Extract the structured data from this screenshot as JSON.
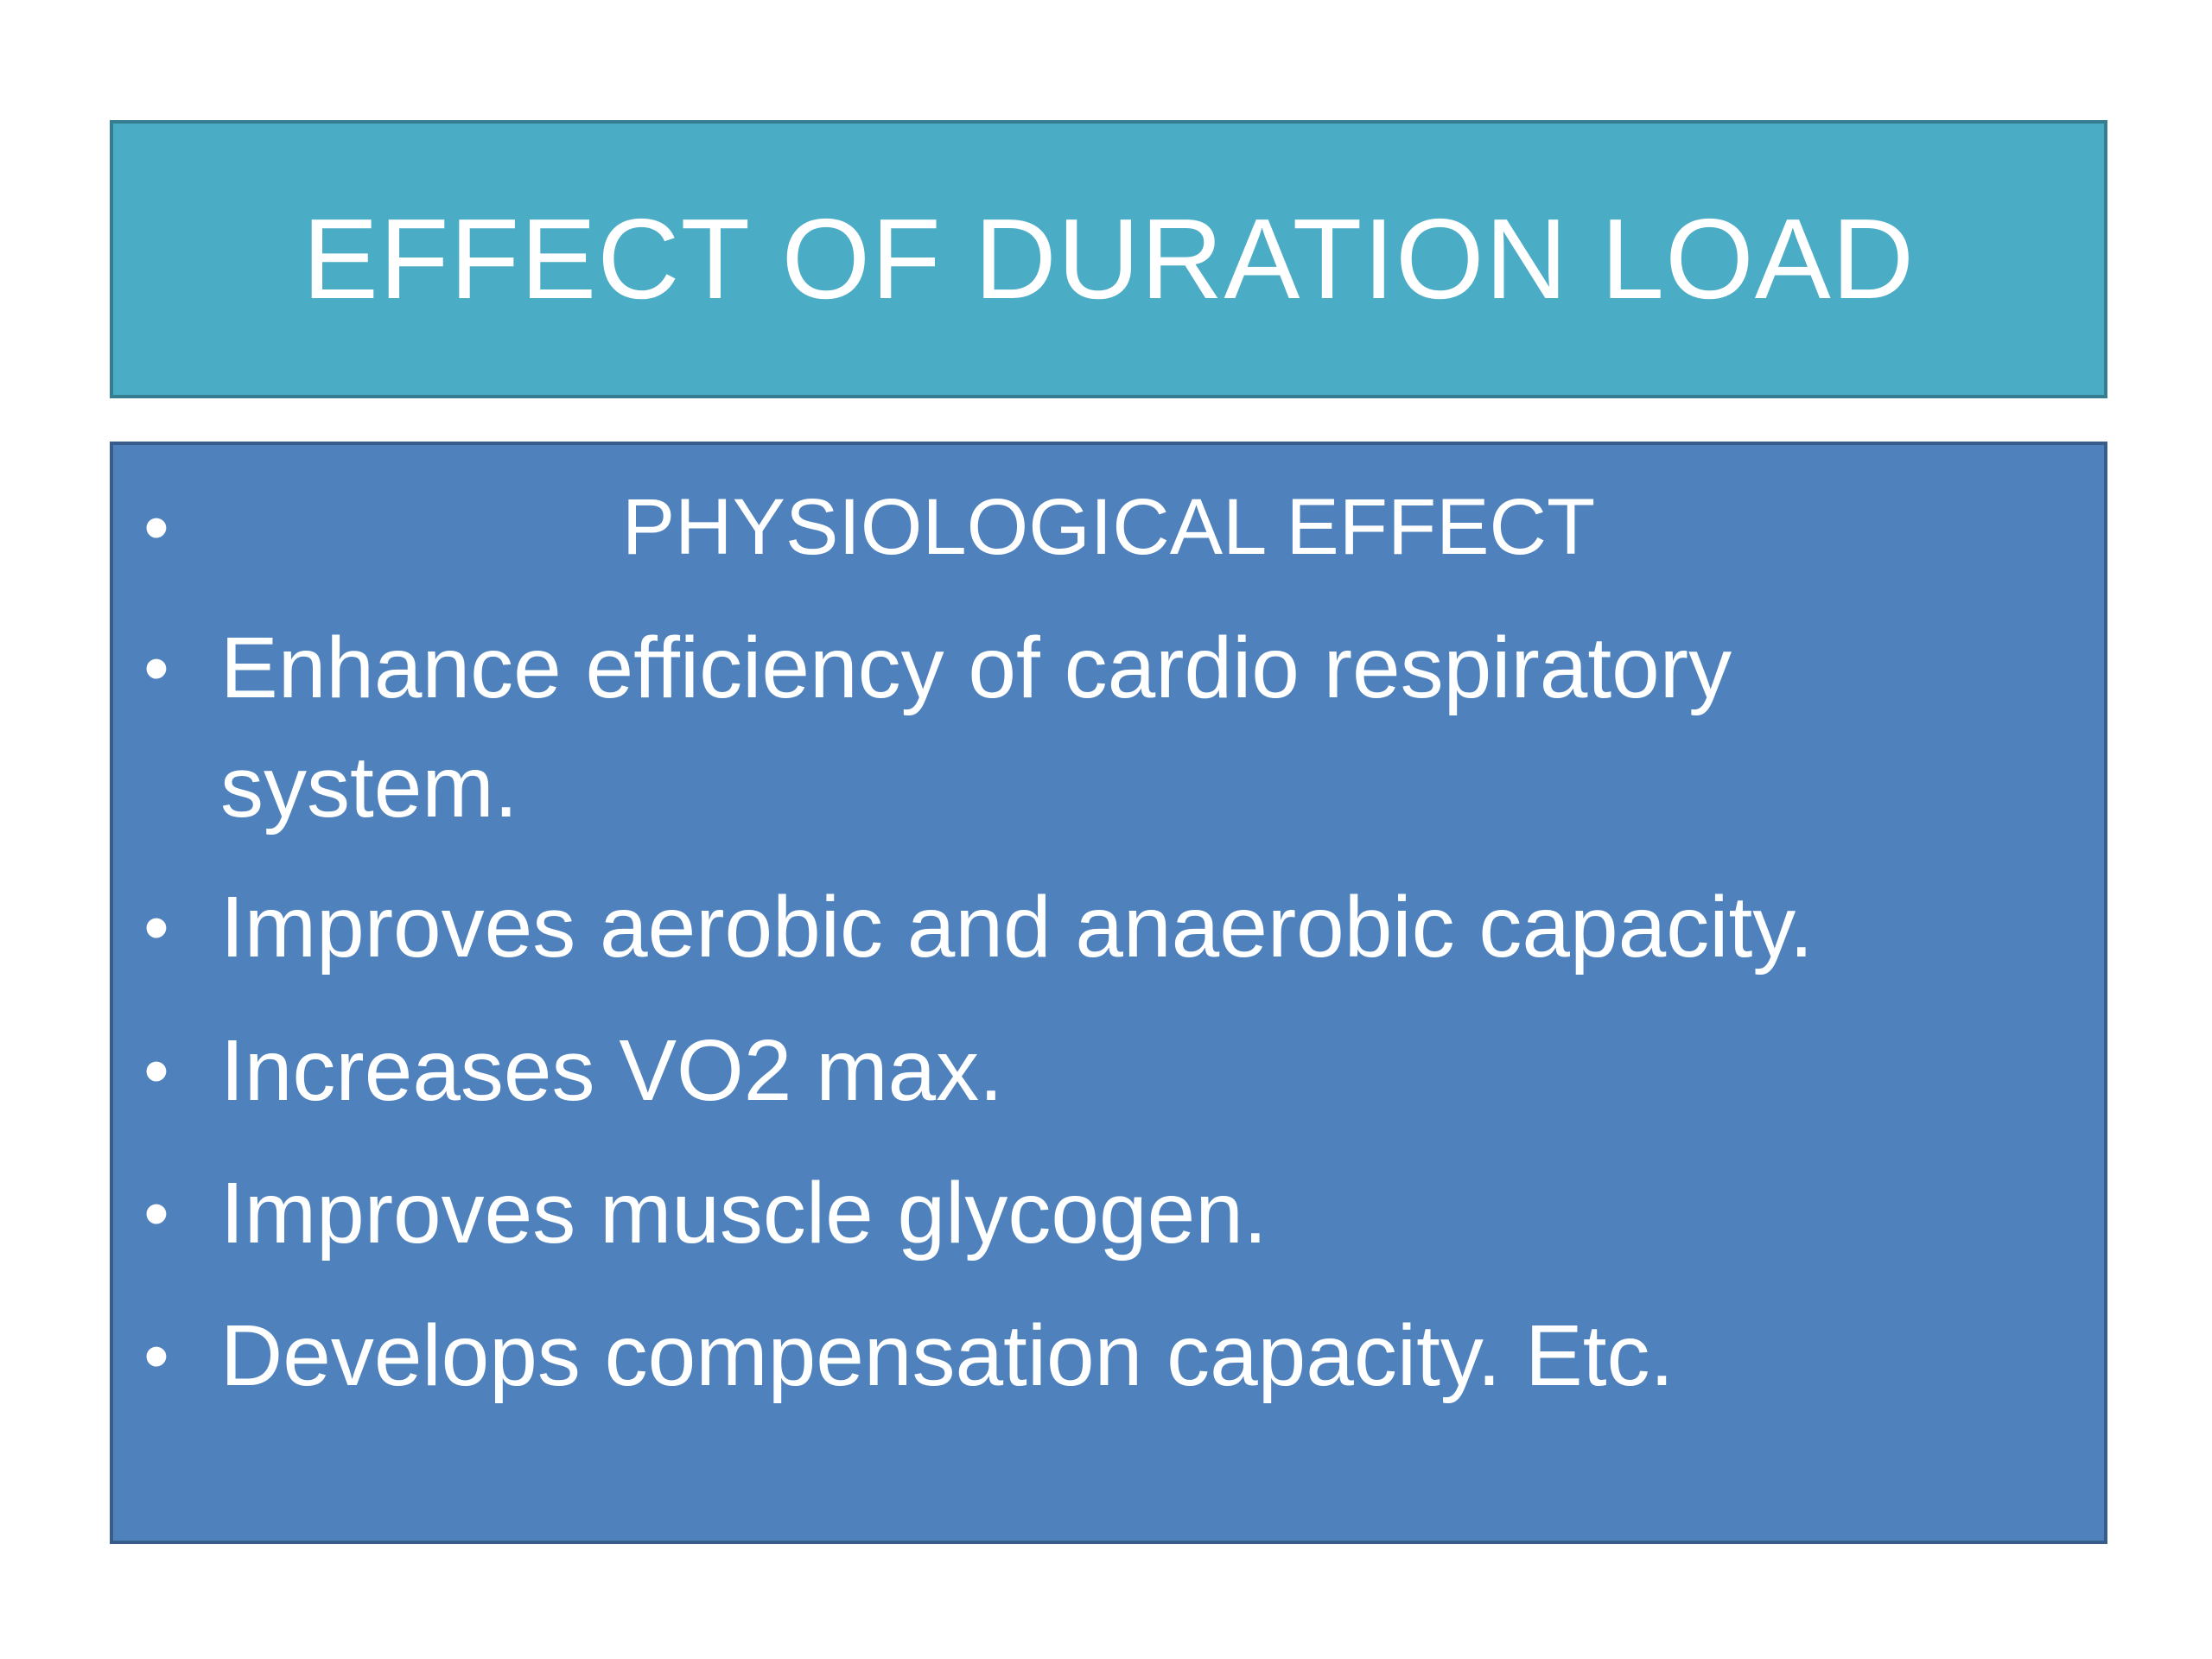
{
  "slide": {
    "title": "EFFECT OF DURATION LOAD",
    "bullet_glyph": "•",
    "items": [
      {
        "text": "PHYSIOLOGICAL EFFECT"
      },
      {
        "text": "Enhance efficiency of cardio respiratory system."
      },
      {
        "text": "Improves aerobic and anaerobic capacity."
      },
      {
        "text": "Increases VO2 max."
      },
      {
        "text": "Improves muscle glycogen."
      },
      {
        "text": "Develops compensation capacity. Etc."
      }
    ]
  },
  "colors": {
    "title_background": "#4bacc6",
    "content_background": "#4f81bd",
    "text": "#ffffff"
  }
}
